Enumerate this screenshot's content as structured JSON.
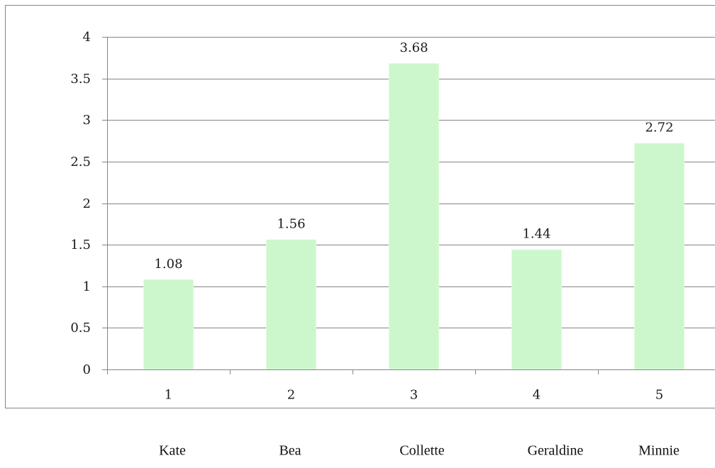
{
  "chart_data": {
    "type": "bar",
    "categories": [
      "1",
      "2",
      "3",
      "4",
      "5"
    ],
    "values": [
      1.08,
      1.56,
      3.68,
      1.44,
      2.72
    ],
    "data_labels": [
      "1.08",
      "1.56",
      "3.68",
      "1.44",
      "2.72"
    ],
    "y_ticks": [
      "0",
      "0.5",
      "1",
      "1.5",
      "2",
      "2.5",
      "3",
      "3.5",
      "4"
    ],
    "ylim": [
      0,
      4
    ],
    "grid": true,
    "bar_color": "#ccf7cc",
    "name_labels": [
      "Kate",
      "Bea",
      "Collette",
      "Geraldine",
      "Minnie"
    ]
  }
}
